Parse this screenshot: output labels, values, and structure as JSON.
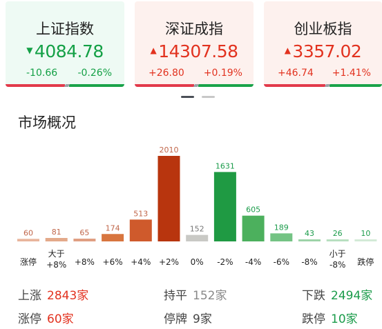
{
  "indices": [
    {
      "name": "上证指数",
      "price": "4084.78",
      "change": "-10.66",
      "pct": "-0.26%",
      "direction": "down",
      "arrow": "▼"
    },
    {
      "name": "深证成指",
      "price": "14307.58",
      "change": "+26.80",
      "pct": "+0.19%",
      "direction": "up",
      "arrow": "▲"
    },
    {
      "name": "创业板指",
      "price": "3357.02",
      "change": "+46.74",
      "pct": "+1.41%",
      "direction": "up",
      "arrow": "▲"
    }
  ],
  "section": {
    "title": "市场概况"
  },
  "chart_data": {
    "type": "bar",
    "categories": [
      "涨停",
      "大于\n+8%",
      "+8%",
      "+6%",
      "+4%",
      "+2%",
      "0%",
      "-2%",
      "-4%",
      "-6%",
      "-8%",
      "小于\n-8%",
      "跌停"
    ],
    "values": [
      60,
      81,
      65,
      174,
      513,
      2010,
      152,
      1631,
      605,
      189,
      43,
      26,
      10
    ],
    "ylim": [
      0,
      2010
    ],
    "colors": [
      "#e8b59c",
      "#e3a98a",
      "#e09f82",
      "#d8753f",
      "#cf5a2c",
      "#b8350e",
      "#c9c9c5",
      "#1f9a43",
      "#4cb05d",
      "#74c384",
      "#9dd3a8",
      "#b8dfc0",
      "#d3ead7"
    ],
    "label_colors": [
      "#c0664a",
      "#c0664a",
      "#c0664a",
      "#c0664a",
      "#c0664a",
      "#c0664a",
      "#777777",
      "#1a9b4a",
      "#1a9b4a",
      "#1a9b4a",
      "#1a9b4a",
      "#1a9b4a",
      "#1a9b4a"
    ]
  },
  "summary": {
    "rise_label": "上涨",
    "rise_value": "2843家",
    "flat_label": "持平",
    "flat_value": "152家",
    "fall_label": "下跌",
    "fall_value": "2494家",
    "limit_up_label": "涨停",
    "limit_up_value": "60家",
    "suspend_label": "停牌",
    "suspend_value": "9家",
    "limit_down_label": "跌停",
    "limit_down_value": "10家"
  }
}
